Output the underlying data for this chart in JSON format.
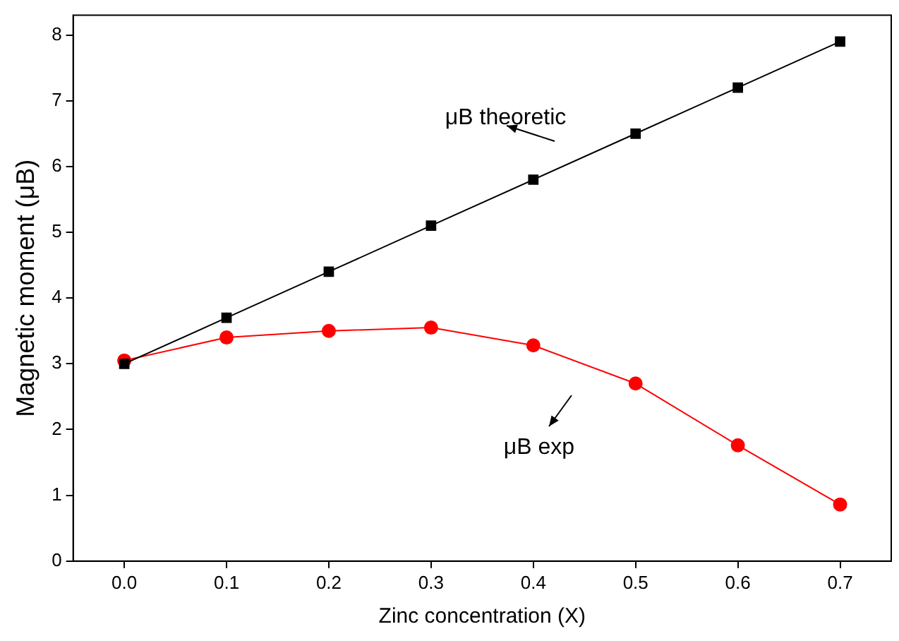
{
  "chart_data": {
    "type": "line",
    "xlabel": "Zinc concentration (X)",
    "ylabel": "Magnetic moment (μB)",
    "x": [
      0,
      0.1,
      0.2,
      0.3,
      0.4,
      0.5,
      0.6,
      0.7
    ],
    "series": [
      {
        "color": "#000000",
        "marker": "square",
        "values": [
          3.0,
          3.7,
          4.4,
          5.1,
          5.8,
          6.5,
          7.2,
          7.9
        ]
      },
      {
        "color": "#ff0000",
        "marker": "circle",
        "values": [
          3.05,
          3.4,
          3.5,
          3.55,
          3.28,
          2.7,
          1.76,
          0.86
        ]
      }
    ],
    "annotations": [
      "μB theoretic",
      "μB exp"
    ],
    "xlim": [
      -0.05,
      0.75
    ],
    "ylim": [
      0,
      8.3
    ],
    "xticks": [
      {
        "value": 0,
        "label": "0.0"
      },
      0.1,
      0.2,
      0.3,
      0.4,
      0.5,
      0.6,
      0.7
    ],
    "yticks": [
      0,
      1,
      2,
      3,
      4,
      5,
      6,
      7,
      8
    ],
    "grid": false,
    "legend": false,
    "line_style": "solid"
  }
}
